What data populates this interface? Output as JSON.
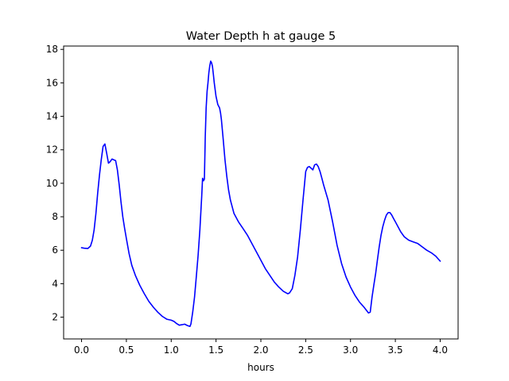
{
  "chart_data": {
    "type": "line",
    "title": "Water Depth h at gauge 5",
    "xlabel": "hours",
    "ylabel": "",
    "xlim": [
      -0.2,
      4.2
    ],
    "ylim": [
      0.7,
      18.2
    ],
    "x_ticks": [
      0.0,
      0.5,
      1.0,
      1.5,
      2.0,
      2.5,
      3.0,
      3.5,
      4.0
    ],
    "x_tick_labels": [
      "0.0",
      "0.5",
      "1.0",
      "1.5",
      "2.0",
      "2.5",
      "3.0",
      "3.5",
      "4.0"
    ],
    "y_ticks": [
      2,
      4,
      6,
      8,
      10,
      12,
      14,
      16,
      18
    ],
    "y_tick_labels": [
      "2",
      "4",
      "6",
      "8",
      "10",
      "12",
      "14",
      "16",
      "18"
    ],
    "grid": false,
    "legend": "none",
    "series": [
      {
        "color": "#0000ff",
        "x": [
          0.0,
          0.03,
          0.07,
          0.1,
          0.12,
          0.14,
          0.16,
          0.18,
          0.2,
          0.22,
          0.24,
          0.26,
          0.28,
          0.3,
          0.32,
          0.34,
          0.36,
          0.38,
          0.4,
          0.42,
          0.44,
          0.46,
          0.48,
          0.5,
          0.53,
          0.56,
          0.6,
          0.65,
          0.7,
          0.75,
          0.8,
          0.85,
          0.9,
          0.95,
          1.0,
          1.03,
          1.06,
          1.09,
          1.12,
          1.15,
          1.18,
          1.21,
          1.22,
          1.24,
          1.26,
          1.28,
          1.3,
          1.32,
          1.34,
          1.35,
          1.36,
          1.37,
          1.38,
          1.39,
          1.4,
          1.41,
          1.42,
          1.43,
          1.44,
          1.45,
          1.46,
          1.47,
          1.48,
          1.5,
          1.52,
          1.54,
          1.55,
          1.56,
          1.58,
          1.6,
          1.62,
          1.64,
          1.66,
          1.7,
          1.75,
          1.8,
          1.85,
          1.9,
          1.95,
          2.0,
          2.05,
          2.1,
          2.15,
          2.2,
          2.25,
          2.3,
          2.32,
          2.35,
          2.38,
          2.41,
          2.44,
          2.47,
          2.5,
          2.52,
          2.54,
          2.56,
          2.58,
          2.6,
          2.62,
          2.64,
          2.66,
          2.68,
          2.7,
          2.75,
          2.8,
          2.85,
          2.9,
          2.95,
          3.0,
          3.05,
          3.1,
          3.15,
          3.2,
          3.22,
          3.24,
          3.26,
          3.28,
          3.3,
          3.32,
          3.34,
          3.36,
          3.38,
          3.4,
          3.42,
          3.44,
          3.46,
          3.48,
          3.5,
          3.53,
          3.56,
          3.6,
          3.65,
          3.7,
          3.75,
          3.8,
          3.85,
          3.9,
          3.95,
          4.0
        ],
        "y": [
          6.15,
          6.12,
          6.1,
          6.25,
          6.6,
          7.2,
          8.2,
          9.4,
          10.5,
          11.4,
          12.2,
          12.35,
          11.8,
          11.2,
          11.3,
          11.45,
          11.4,
          11.35,
          10.8,
          9.9,
          8.9,
          8.0,
          7.3,
          6.7,
          5.8,
          5.1,
          4.5,
          3.9,
          3.4,
          2.95,
          2.6,
          2.3,
          2.05,
          1.88,
          1.82,
          1.75,
          1.62,
          1.52,
          1.55,
          1.58,
          1.5,
          1.45,
          1.6,
          2.3,
          3.2,
          4.4,
          5.7,
          7.2,
          9.2,
          10.3,
          10.15,
          10.25,
          12.8,
          14.5,
          15.5,
          16.0,
          16.6,
          17.0,
          17.3,
          17.2,
          17.0,
          16.5,
          16.0,
          15.2,
          14.7,
          14.5,
          14.2,
          13.8,
          12.6,
          11.4,
          10.4,
          9.6,
          9.0,
          8.2,
          7.7,
          7.3,
          6.9,
          6.4,
          5.9,
          5.4,
          4.9,
          4.5,
          4.1,
          3.8,
          3.55,
          3.4,
          3.45,
          3.7,
          4.5,
          5.6,
          7.2,
          9.0,
          10.7,
          10.95,
          11.0,
          10.9,
          10.8,
          11.1,
          11.15,
          11.0,
          10.7,
          10.3,
          9.9,
          9.0,
          7.7,
          6.3,
          5.2,
          4.4,
          3.8,
          3.3,
          2.9,
          2.6,
          2.25,
          2.3,
          3.2,
          3.9,
          4.6,
          5.4,
          6.2,
          6.9,
          7.4,
          7.8,
          8.1,
          8.25,
          8.25,
          8.1,
          7.9,
          7.7,
          7.4,
          7.1,
          6.8,
          6.6,
          6.5,
          6.4,
          6.2,
          6.0,
          5.85,
          5.65,
          5.35
        ]
      }
    ]
  }
}
